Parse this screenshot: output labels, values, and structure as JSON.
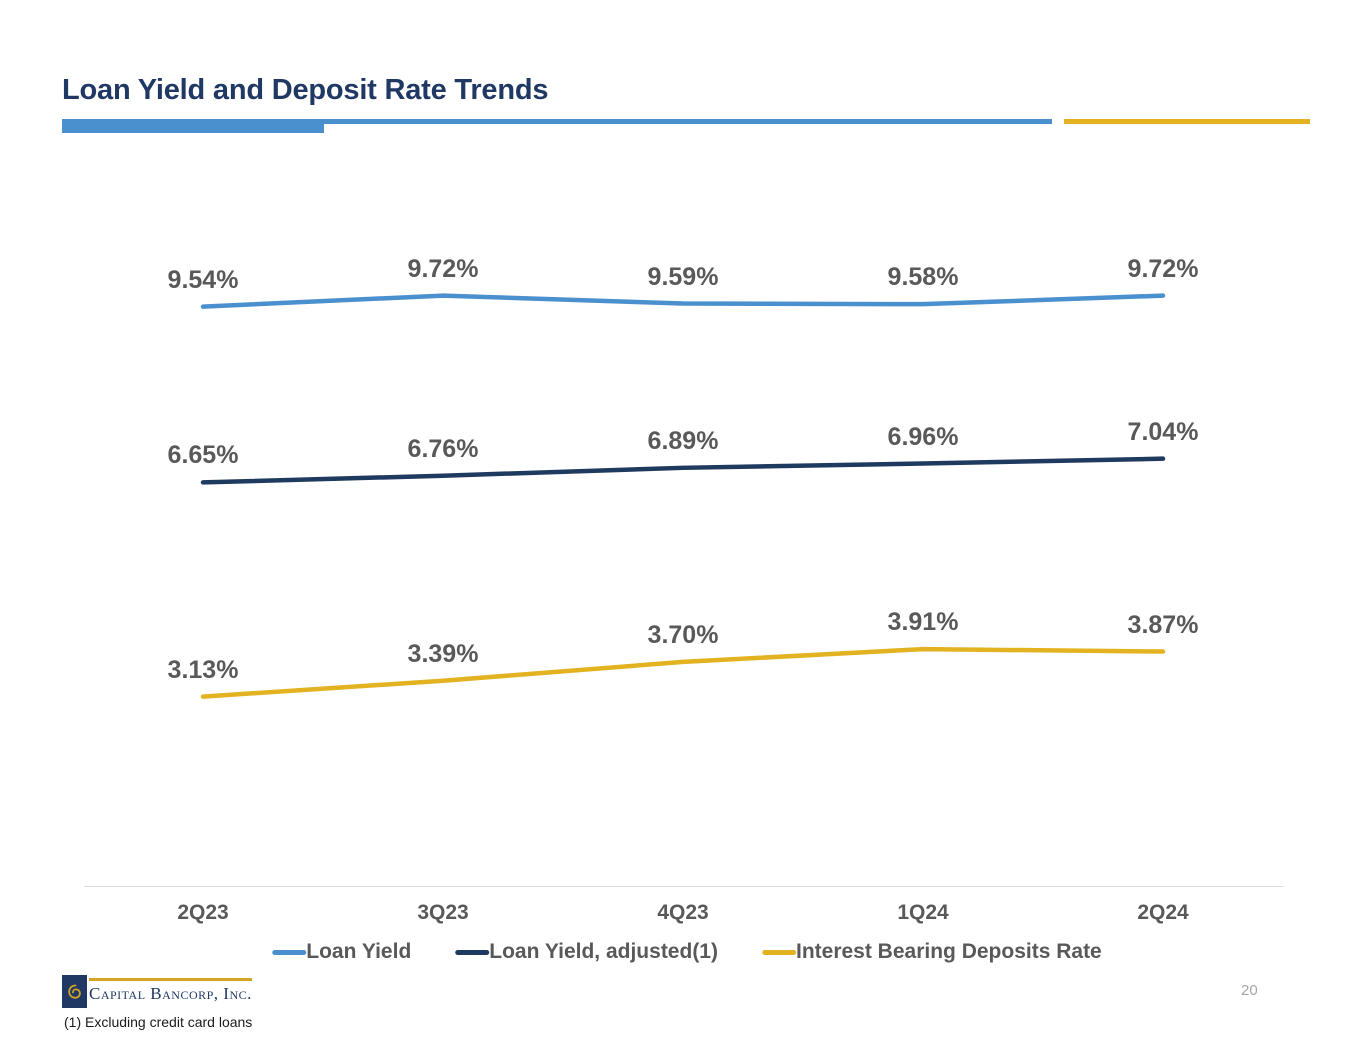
{
  "header": {
    "title": "Loan Yield and Deposit Rate Trends"
  },
  "theme": {
    "title-navy": "#1F3864",
    "accent-blue": "#4A90CE",
    "accent-gold": "#E3B220",
    "logo-gold": "#D2A421",
    "label-gray": "#595959",
    "axis-gray": "#D9D9D9",
    "page-num-gray": "#A6A6A6"
  },
  "chart_data": {
    "type": "line",
    "title": "Loan Yield and Deposit Rate Trends",
    "categories": [
      "2Q23",
      "3Q23",
      "4Q23",
      "1Q24",
      "2Q24"
    ],
    "series": [
      {
        "name": "Loan Yield",
        "color": "#4A90CE",
        "values": [
          9.54,
          9.72,
          9.59,
          9.58,
          9.72
        ],
        "labels": [
          "9.54%",
          "9.72%",
          "9.59%",
          "9.58%",
          "9.72%"
        ]
      },
      {
        "name": "Loan Yield, adjusted(1)",
        "color": "#1F3A5F",
        "values": [
          6.65,
          6.76,
          6.89,
          6.96,
          7.04
        ],
        "labels": [
          "6.65%",
          "6.76%",
          "6.89%",
          "6.96%",
          "7.04%"
        ]
      },
      {
        "name": "Interest Bearing Deposits Rate",
        "color": "#E3B220",
        "values": [
          3.13,
          3.39,
          3.7,
          3.91,
          3.87
        ],
        "labels": [
          "3.13%",
          "3.39%",
          "3.70%",
          "3.91%",
          "3.87%"
        ]
      }
    ],
    "xlabel": "",
    "ylabel": "",
    "ylim": [
      0,
      12
    ],
    "grid": false,
    "data_labels": true,
    "legend_position": "bottom"
  },
  "footer": {
    "logo_text": "Capital Bancorp, Inc.",
    "footnote": "(1) Excluding credit card loans",
    "page_number": "20"
  }
}
